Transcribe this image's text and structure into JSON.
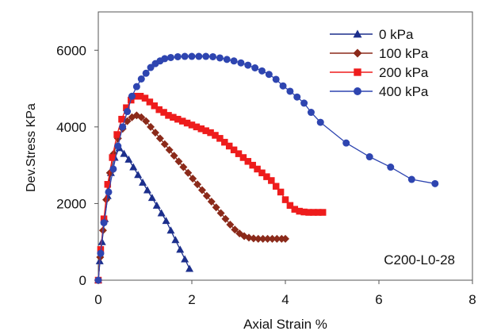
{
  "chart_data": {
    "type": "line",
    "title": "",
    "xlabel": "Axial Strain %",
    "ylabel": "Dev.Stress KPa",
    "xlim": [
      0,
      8
    ],
    "ylim": [
      0,
      7000
    ],
    "x_ticks": [
      "0",
      "2",
      "4",
      "6",
      "8"
    ],
    "y_ticks": [
      "0",
      "2000",
      "4000",
      "6000"
    ],
    "y_ticks_values": [
      0,
      2000,
      4000,
      6000
    ],
    "x_ticks_values": [
      0,
      2,
      4,
      6,
      8
    ],
    "grid": false,
    "legend_position": "top-right",
    "annotation": "C200-L0-28",
    "series": [
      {
        "name": "0 kPa",
        "color": "#1c2f8c",
        "marker": "triangle",
        "points": [
          [
            0,
            0
          ],
          [
            0.03,
            500
          ],
          [
            0.08,
            1000
          ],
          [
            0.14,
            1600
          ],
          [
            0.2,
            2200
          ],
          [
            0.27,
            2800
          ],
          [
            0.35,
            3200
          ],
          [
            0.45,
            3450
          ],
          [
            0.55,
            3300
          ],
          [
            0.65,
            3150
          ],
          [
            0.75,
            2950
          ],
          [
            0.85,
            2750
          ],
          [
            0.95,
            2550
          ],
          [
            1.05,
            2350
          ],
          [
            1.15,
            2150
          ],
          [
            1.25,
            1950
          ],
          [
            1.35,
            1750
          ],
          [
            1.45,
            1550
          ],
          [
            1.55,
            1300
          ],
          [
            1.65,
            1050
          ],
          [
            1.75,
            800
          ],
          [
            1.85,
            550
          ],
          [
            1.95,
            300
          ]
        ]
      },
      {
        "name": "100 kPa",
        "color": "#8b2a1a",
        "marker": "diamond",
        "points": [
          [
            0,
            0
          ],
          [
            0.04,
            600
          ],
          [
            0.1,
            1300
          ],
          [
            0.17,
            2100
          ],
          [
            0.25,
            2800
          ],
          [
            0.33,
            3300
          ],
          [
            0.42,
            3700
          ],
          [
            0.52,
            3950
          ],
          [
            0.62,
            4150
          ],
          [
            0.72,
            4250
          ],
          [
            0.82,
            4300
          ],
          [
            0.92,
            4250
          ],
          [
            1.02,
            4150
          ],
          [
            1.12,
            4000
          ],
          [
            1.22,
            3850
          ],
          [
            1.32,
            3700
          ],
          [
            1.42,
            3550
          ],
          [
            1.52,
            3400
          ],
          [
            1.62,
            3250
          ],
          [
            1.72,
            3100
          ],
          [
            1.82,
            2950
          ],
          [
            1.92,
            2800
          ],
          [
            2.02,
            2650
          ],
          [
            2.12,
            2500
          ],
          [
            2.22,
            2350
          ],
          [
            2.32,
            2200
          ],
          [
            2.42,
            2050
          ],
          [
            2.52,
            1900
          ],
          [
            2.62,
            1750
          ],
          [
            2.72,
            1600
          ],
          [
            2.82,
            1450
          ],
          [
            2.92,
            1320
          ],
          [
            3.02,
            1220
          ],
          [
            3.12,
            1150
          ],
          [
            3.22,
            1110
          ],
          [
            3.32,
            1090
          ],
          [
            3.42,
            1080
          ],
          [
            3.52,
            1080
          ],
          [
            3.62,
            1080
          ],
          [
            3.72,
            1080
          ],
          [
            3.82,
            1080
          ],
          [
            3.92,
            1080
          ],
          [
            4.0,
            1080
          ]
        ]
      },
      {
        "name": "200 kPa",
        "color": "#ee1c1c",
        "marker": "square",
        "points": [
          [
            0,
            0
          ],
          [
            0.05,
            800
          ],
          [
            0.12,
            1600
          ],
          [
            0.2,
            2500
          ],
          [
            0.3,
            3200
          ],
          [
            0.4,
            3800
          ],
          [
            0.5,
            4200
          ],
          [
            0.6,
            4500
          ],
          [
            0.7,
            4700
          ],
          [
            0.8,
            4800
          ],
          [
            0.9,
            4800
          ],
          [
            1.0,
            4750
          ],
          [
            1.1,
            4650
          ],
          [
            1.2,
            4550
          ],
          [
            1.3,
            4450
          ],
          [
            1.4,
            4380
          ],
          [
            1.5,
            4300
          ],
          [
            1.6,
            4250
          ],
          [
            1.7,
            4200
          ],
          [
            1.8,
            4150
          ],
          [
            1.9,
            4100
          ],
          [
            2.0,
            4050
          ],
          [
            2.1,
            4000
          ],
          [
            2.2,
            3950
          ],
          [
            2.3,
            3900
          ],
          [
            2.4,
            3850
          ],
          [
            2.5,
            3780
          ],
          [
            2.6,
            3700
          ],
          [
            2.7,
            3600
          ],
          [
            2.8,
            3500
          ],
          [
            2.9,
            3400
          ],
          [
            3.0,
            3300
          ],
          [
            3.1,
            3200
          ],
          [
            3.2,
            3100
          ],
          [
            3.3,
            3000
          ],
          [
            3.4,
            2900
          ],
          [
            3.5,
            2800
          ],
          [
            3.6,
            2700
          ],
          [
            3.7,
            2600
          ],
          [
            3.8,
            2450
          ],
          [
            3.9,
            2300
          ],
          [
            4.0,
            2100
          ],
          [
            4.1,
            1950
          ],
          [
            4.2,
            1850
          ],
          [
            4.3,
            1800
          ],
          [
            4.4,
            1780
          ],
          [
            4.5,
            1770
          ],
          [
            4.6,
            1770
          ],
          [
            4.7,
            1770
          ],
          [
            4.8,
            1770
          ]
        ]
      },
      {
        "name": "400 kPa",
        "color": "#2e45b0",
        "marker": "circle",
        "points": [
          [
            0,
            0
          ],
          [
            0.05,
            700
          ],
          [
            0.12,
            1500
          ],
          [
            0.22,
            2300
          ],
          [
            0.32,
            2900
          ],
          [
            0.42,
            3500
          ],
          [
            0.52,
            4000
          ],
          [
            0.62,
            4400
          ],
          [
            0.72,
            4800
          ],
          [
            0.82,
            5050
          ],
          [
            0.92,
            5250
          ],
          [
            1.02,
            5400
          ],
          [
            1.12,
            5550
          ],
          [
            1.22,
            5650
          ],
          [
            1.32,
            5720
          ],
          [
            1.42,
            5780
          ],
          [
            1.55,
            5810
          ],
          [
            1.7,
            5830
          ],
          [
            1.85,
            5840
          ],
          [
            2.0,
            5840
          ],
          [
            2.15,
            5840
          ],
          [
            2.3,
            5840
          ],
          [
            2.45,
            5830
          ],
          [
            2.6,
            5800
          ],
          [
            2.75,
            5760
          ],
          [
            2.9,
            5720
          ],
          [
            3.05,
            5670
          ],
          [
            3.2,
            5610
          ],
          [
            3.35,
            5540
          ],
          [
            3.5,
            5460
          ],
          [
            3.65,
            5370
          ],
          [
            3.8,
            5240
          ],
          [
            3.95,
            5070
          ],
          [
            4.1,
            4930
          ],
          [
            4.25,
            4780
          ],
          [
            4.4,
            4620
          ],
          [
            4.55,
            4380
          ],
          [
            4.75,
            4120
          ],
          [
            5.3,
            3580
          ],
          [
            5.8,
            3220
          ],
          [
            6.25,
            2950
          ],
          [
            6.7,
            2630
          ],
          [
            7.2,
            2520
          ]
        ]
      }
    ]
  }
}
